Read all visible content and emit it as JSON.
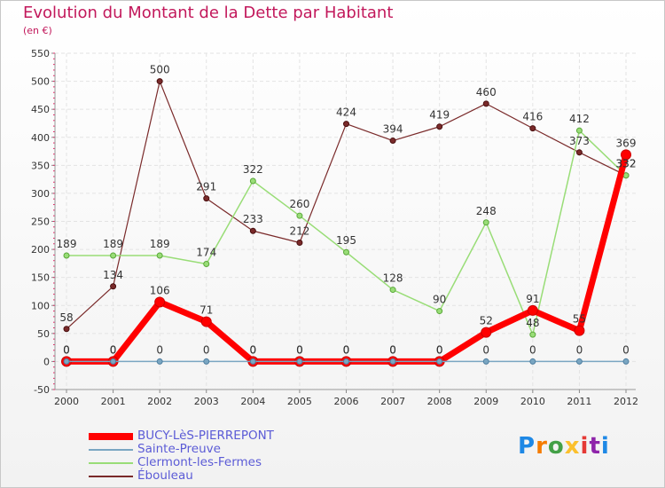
{
  "header": {
    "title": "Evolution du Montant de la Dette par Habitant",
    "subtitle": "(en €)"
  },
  "logo": {
    "text": "Proxiti"
  },
  "chart_data": {
    "type": "line",
    "title": "Evolution du Montant de la Dette par Habitant",
    "ylabel": "(en €)",
    "xlabel": "",
    "x": [
      "2000",
      "2001",
      "2002",
      "2003",
      "2004",
      "2005",
      "2006",
      "2007",
      "2008",
      "2009",
      "2010",
      "2011",
      "2012"
    ],
    "ylim": [
      -50,
      550
    ],
    "yticks": [
      -50,
      0,
      50,
      100,
      150,
      200,
      250,
      300,
      350,
      400,
      450,
      500,
      550
    ],
    "grid": true,
    "legend_position": "bottom-left",
    "series": [
      {
        "name": "BUCY-LèS-PIERREPONT",
        "color": "#ff0000",
        "values": [
          0,
          0,
          106,
          71,
          0,
          0,
          0,
          0,
          0,
          52,
          91,
          55,
          369
        ]
      },
      {
        "name": "Sainte-Preuve",
        "color": "#7aa6c2",
        "values": [
          0,
          0,
          0,
          0,
          0,
          0,
          0,
          0,
          0,
          0,
          0,
          0,
          0
        ]
      },
      {
        "name": "Clermont-les-Fermes",
        "color": "#99dd77",
        "values": [
          189,
          189,
          189,
          174,
          322,
          260,
          195,
          128,
          90,
          248,
          48,
          412,
          332
        ]
      },
      {
        "name": "Ébouleau",
        "color": "#7a2a2a",
        "values": [
          58,
          134,
          500,
          291,
          233,
          212,
          424,
          394,
          419,
          460,
          416,
          373,
          332
        ]
      }
    ]
  }
}
